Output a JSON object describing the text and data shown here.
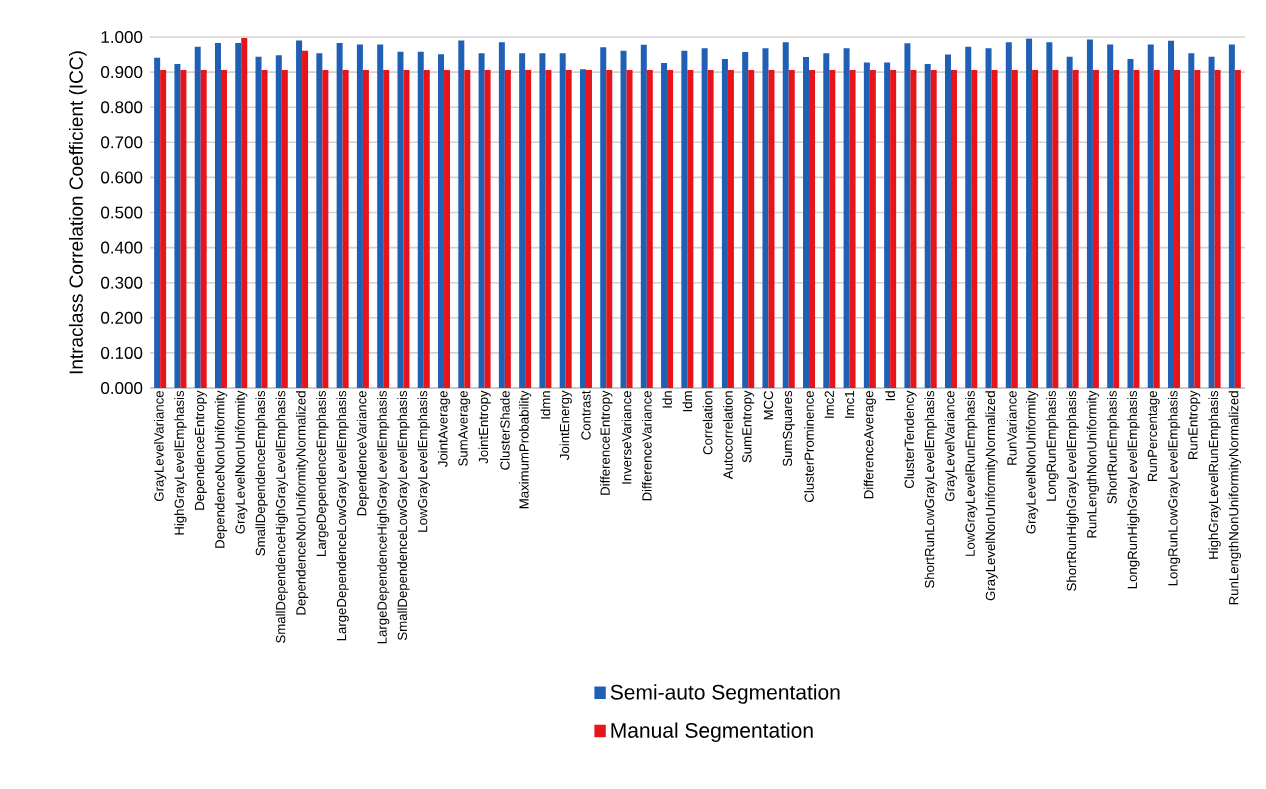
{
  "chart_data": {
    "type": "bar",
    "ylabel": "Intraclass Correlation Coefficient (ICC)",
    "categories": [
      "GrayLevelVariance",
      "HighGrayLevelEmphasis",
      "DependenceEntropy",
      "DependenceNonUniformity",
      "GrayLevelNonUniformity",
      "SmallDependenceEmphasis",
      "SmallDependenceHighGrayLevelEmphasis",
      "DependenceNonUniformityNormalized",
      "LargeDependenceEmphasis",
      "LargeDependenceLowGrayLevelEmphasis",
      "DependenceVariance",
      "LargeDependenceHighGrayLevelEmphasis",
      "SmallDependenceLowGrayLevelEmphasis",
      "LowGrayLevelEmphasis",
      "JointAverage",
      "SumAverage",
      "JointEntropy",
      "ClusterShade",
      "MaximumProbability",
      "Idmn",
      "JointEnergy",
      "Contrast",
      "DifferenceEntropy",
      "InverseVariance",
      "DifferenceVariance",
      "Idn",
      "Idm",
      "Correlation",
      "Autocorrelation",
      "SumEntropy",
      "MCC",
      "SumSquares",
      "ClusterProminence",
      "Imc2",
      "Imc1",
      "DifferenceAverage",
      "Id",
      "ClusterTendency",
      "ShortRunLowGrayLevelEmphasis",
      "GrayLevelVariance",
      "LowGrayLevelRunEmphasis",
      "GrayLevelNonUniformityNormalized",
      "RunVariance",
      "GrayLevelNonUniformity",
      "LongRunEmphasis",
      "ShortRunHighGrayLevelEmphasis",
      "RunLengthNonUniformity",
      "ShortRunEmphasis",
      "LongRunHighGrayLevelEmphasis",
      "RunPercentage",
      "LongRunLowGrayLevelEmphasis",
      "RunEntropy",
      "HighGrayLevelRunEmphasis",
      "RunLengthNonUniformityNormalized"
    ],
    "series": [
      {
        "name": "Semi-auto Segmentation",
        "color": "#1f5fb4",
        "values": [
          0.941,
          0.923,
          0.972,
          0.983,
          0.983,
          0.944,
          0.948,
          0.99,
          0.954,
          0.983,
          0.979,
          0.979,
          0.958,
          0.958,
          0.951,
          0.99,
          0.954,
          0.985,
          0.954,
          0.954,
          0.954,
          0.908,
          0.971,
          0.961,
          0.978,
          0.926,
          0.961,
          0.968,
          0.937,
          0.957,
          0.968,
          0.985,
          0.943,
          0.954,
          0.968,
          0.927,
          0.927,
          0.982,
          0.923,
          0.95,
          0.972,
          0.968,
          0.985,
          0.996,
          0.985,
          0.944,
          0.993,
          0.979,
          0.937,
          0.979,
          0.989,
          0.954,
          0.944,
          0.979
        ]
      },
      {
        "name": "Manual Segmentation",
        "color": "#e8141c",
        "values": [
          0.906,
          0.906,
          0.906,
          0.906,
          0.997,
          0.906,
          0.906,
          0.961,
          0.906,
          0.906,
          0.906,
          0.906,
          0.906,
          0.906,
          0.906,
          0.906,
          0.906,
          0.906,
          0.906,
          0.906,
          0.906,
          0.906,
          0.906,
          0.906,
          0.906,
          0.906,
          0.906,
          0.906,
          0.906,
          0.906,
          0.906,
          0.906,
          0.906,
          0.906,
          0.906,
          0.906,
          0.906,
          0.906,
          0.906,
          0.906,
          0.906,
          0.906,
          0.906,
          0.906,
          0.906,
          0.906,
          0.906,
          0.906,
          0.906,
          0.906,
          0.906,
          0.906,
          0.906,
          0.906
        ]
      }
    ],
    "ylim": [
      0,
      1
    ],
    "yticks": [
      {
        "value": 0,
        "label": "0.000"
      },
      {
        "value": 0.1,
        "label": "0.100"
      },
      {
        "value": 0.2,
        "label": "0.200"
      },
      {
        "value": 0.3,
        "label": "0.300"
      },
      {
        "value": 0.4,
        "label": "0.400"
      },
      {
        "value": 0.5,
        "label": "0.500"
      },
      {
        "value": 0.6,
        "label": "0.600"
      },
      {
        "value": 0.7,
        "label": "0.700"
      },
      {
        "value": 0.8,
        "label": "0.800"
      },
      {
        "value": 0.9,
        "label": "0.900"
      },
      {
        "value": 1,
        "label": "1.000"
      }
    ],
    "grid": "y",
    "legend": "bottom"
  }
}
